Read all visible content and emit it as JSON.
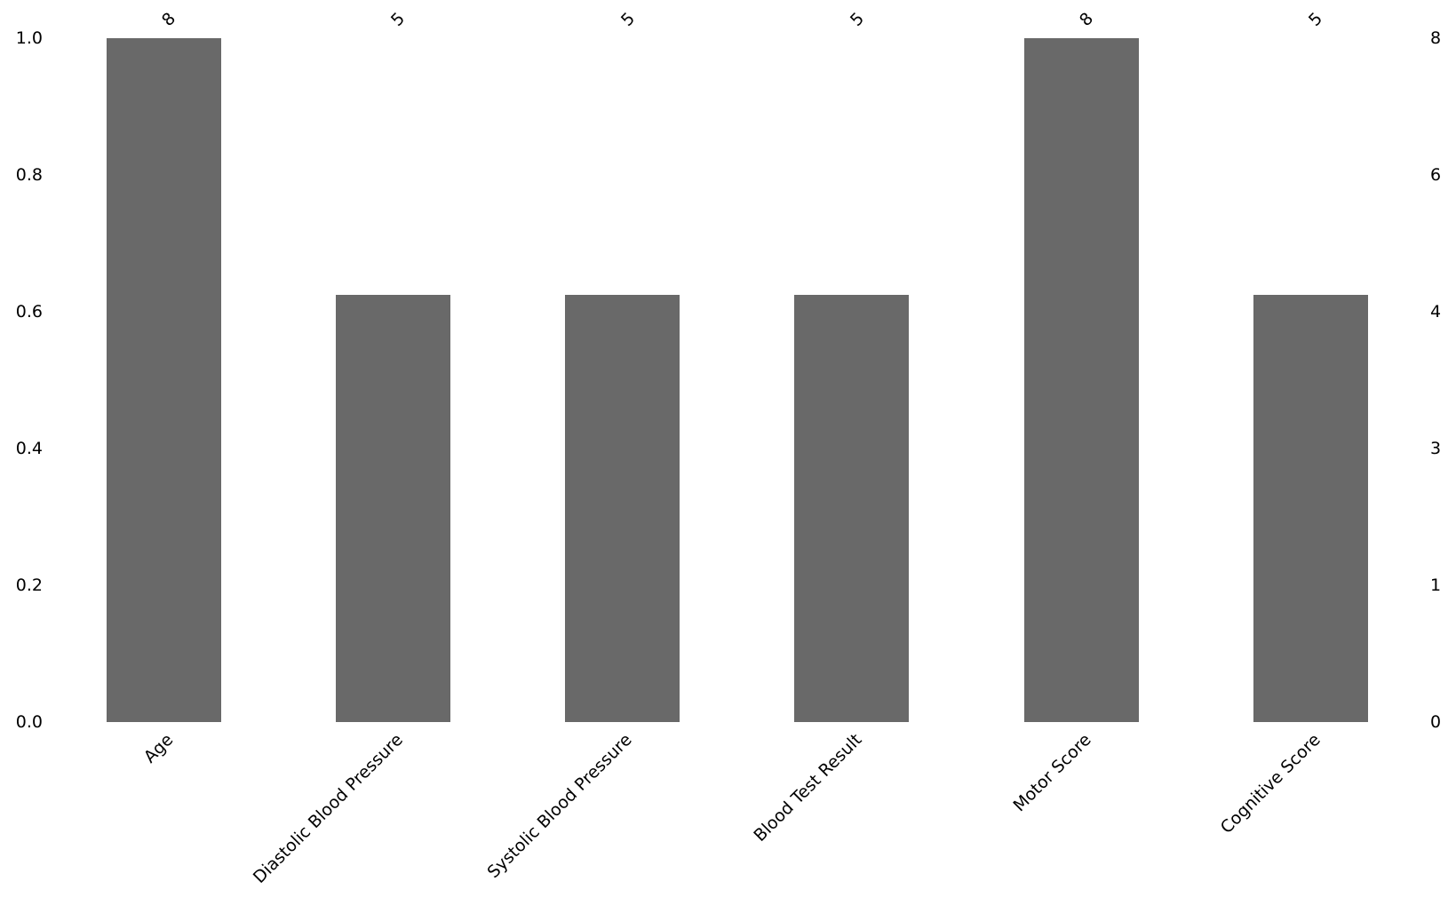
{
  "chart_data": {
    "type": "bar",
    "title": "",
    "xlabel": "",
    "ylabel": "",
    "grid": false,
    "legend": "none",
    "background_color": "#ffffff",
    "bar_color": "#696969",
    "text_color": "#000000",
    "categories": [
      "Age",
      "Diastolic Blood Pressure",
      "Systolic Blood Pressure",
      "Blood Test Result",
      "Motor Score",
      "Cognitive Score"
    ],
    "values": [
      8,
      5,
      5,
      5,
      8,
      5
    ],
    "bar_value_labels": [
      "8",
      "5",
      "5",
      "5",
      "8",
      "5"
    ],
    "left_axis": {
      "tick_labels": [
        "0.0",
        "0.2",
        "0.4",
        "0.6",
        "0.8",
        "1.0"
      ],
      "range": [
        0.0,
        1.0
      ]
    },
    "right_axis": {
      "tick_labels": [
        "0",
        "1",
        "3",
        "4",
        "6",
        "8"
      ],
      "range": [
        0,
        8
      ]
    },
    "x_tick_label_rotation_deg": 45,
    "value_label_rotation_deg": 45
  }
}
